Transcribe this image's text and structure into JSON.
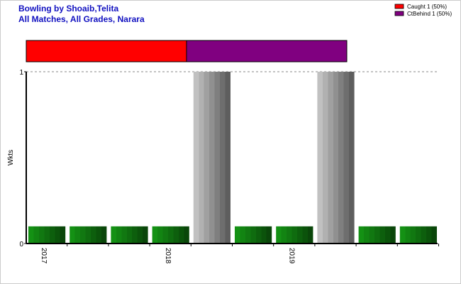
{
  "chart_data": [
    {
      "type": "share-bar",
      "series": [
        {
          "name": "Caught 1 (50%)",
          "color": "#ff0000",
          "values": [
            50
          ]
        },
        {
          "name": "CtBehind 1 (50%)",
          "color": "#800080",
          "values": [
            50
          ]
        }
      ],
      "xlim": [
        0,
        100
      ]
    },
    {
      "type": "bar",
      "title": "Bowling by Shoaib,Telita",
      "subtitle": "All Matches, All Grades, Narara",
      "ylabel": "Wkts",
      "categories": [
        "2017",
        null,
        null,
        "2018",
        null,
        null,
        "2019",
        null,
        null,
        null
      ],
      "values": [
        0.1,
        0.1,
        0.1,
        0.1,
        1,
        0.1,
        0.1,
        1,
        0.1,
        0.1
      ],
      "colors": [
        "#138a13",
        "#138a13",
        "#138a13",
        "#138a13",
        "#b8b8b8",
        "#138a13",
        "#138a13",
        "#b8b8b8",
        "#138a13",
        "#138a13"
      ],
      "ylim": [
        0,
        1
      ],
      "yticks": [
        0,
        1
      ],
      "grid": true
    }
  ]
}
